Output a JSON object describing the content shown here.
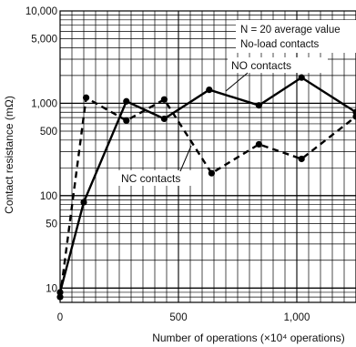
{
  "chart_data": {
    "type": "line",
    "ylabel": "Contact resistance (mΩ)",
    "xlabel": "Number of operations (×10⁴ operations)",
    "y_scale": "log",
    "ylim": [
      7,
      10000
    ],
    "xlim": [
      0,
      1250
    ],
    "grid": true,
    "y_ticks": [
      {
        "value": 10000,
        "label": "10,000"
      },
      {
        "value": 5000,
        "label": "5,000"
      },
      {
        "value": 1000,
        "label": "1,000"
      },
      {
        "value": 500,
        "label": "500"
      },
      {
        "value": 100,
        "label": "100"
      },
      {
        "value": 50,
        "label": "50"
      },
      {
        "value": 10,
        "label": "10"
      }
    ],
    "x_ticks": [
      {
        "value": 0,
        "label": "0"
      },
      {
        "value": 500,
        "label": "500"
      },
      {
        "value": 1000,
        "label": "1,000"
      }
    ],
    "legend_lines": [
      "N = 20 average value",
      "No-load contacts"
    ],
    "series": [
      {
        "name": "NO contacts",
        "line_style": "solid",
        "x": [
          0,
          100,
          280,
          440,
          630,
          840,
          1020,
          1250
        ],
        "y": [
          9,
          85,
          1050,
          680,
          1400,
          950,
          1900,
          800
        ]
      },
      {
        "name": "NC contacts",
        "line_style": "dashed",
        "x": [
          0,
          110,
          280,
          440,
          640,
          840,
          1020,
          1250
        ],
        "y": [
          8,
          1150,
          650,
          1100,
          175,
          360,
          250,
          720
        ]
      }
    ],
    "color": "#000000"
  }
}
